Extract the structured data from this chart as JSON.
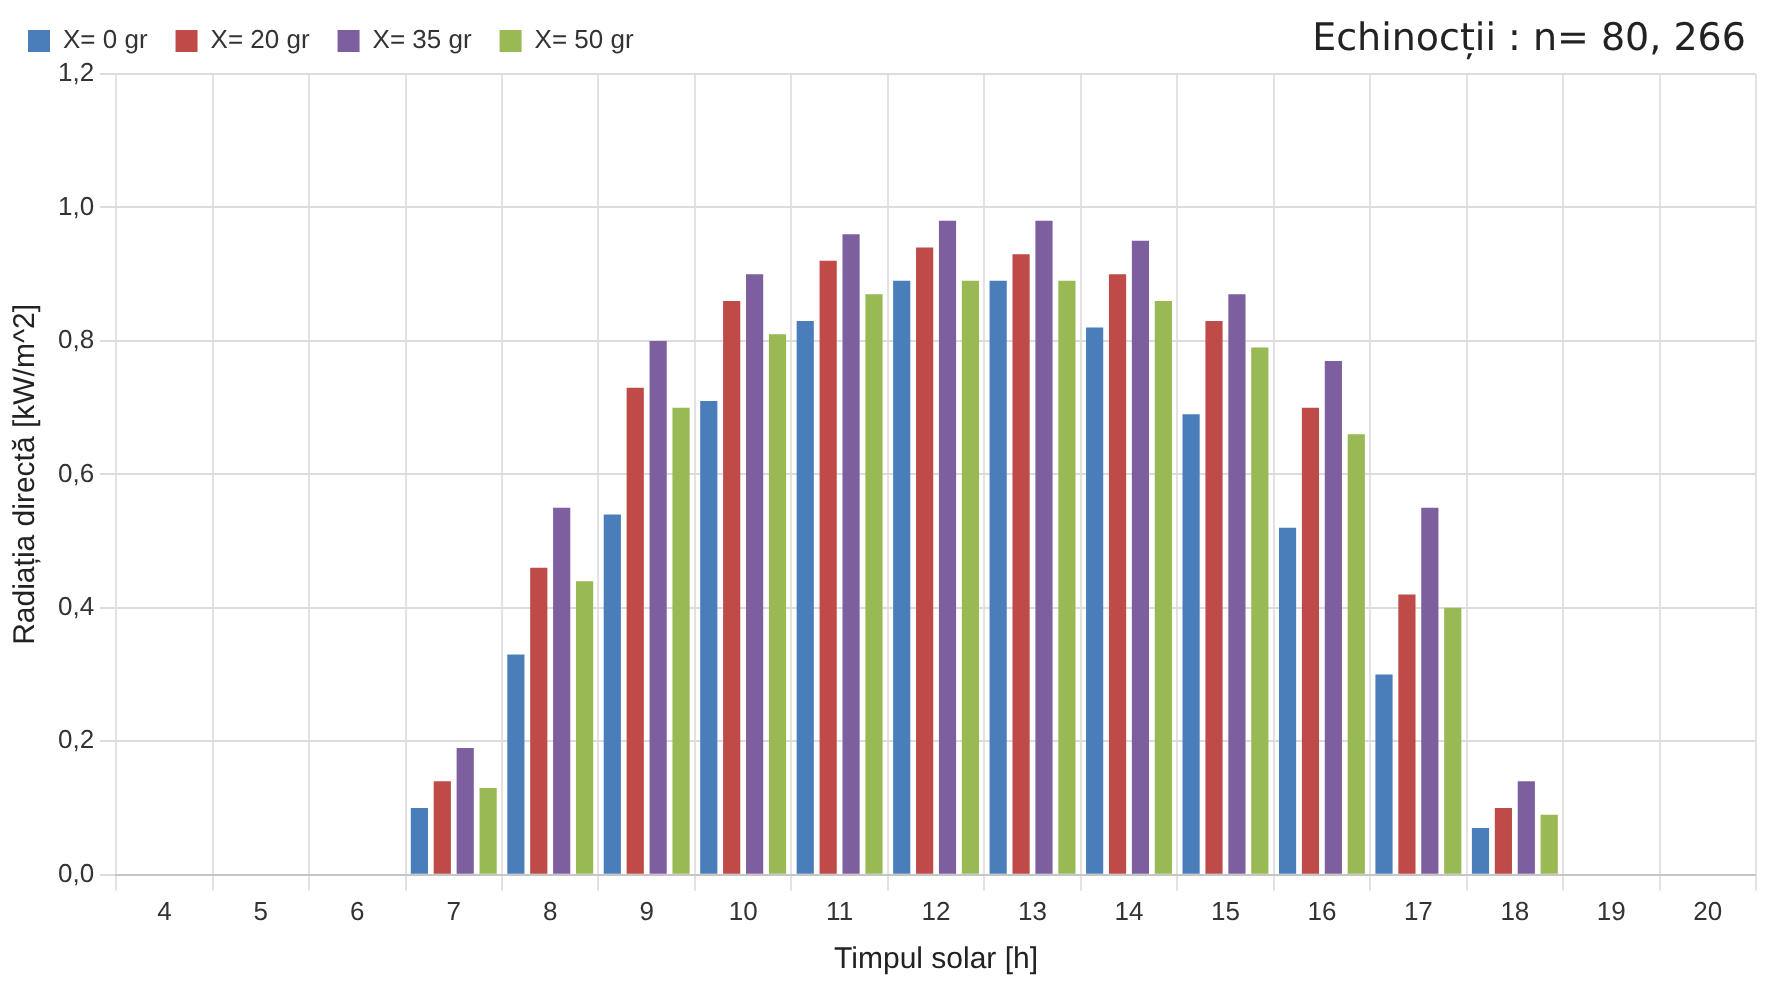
{
  "chart_data": {
    "type": "bar",
    "title": "Echinocții : n= 80, 266",
    "xlabel": "Timpul solar [h]",
    "ylabel": "Radiația directă [kW/m^2]",
    "categories": [
      "4",
      "5",
      "6",
      "7",
      "8",
      "9",
      "10",
      "11",
      "12",
      "13",
      "14",
      "15",
      "16",
      "17",
      "18",
      "19",
      "20"
    ],
    "series": [
      {
        "name": "X= 0 gr",
        "color": "#4a7ebb",
        "values": [
          0,
          0,
          0,
          0.1,
          0.33,
          0.54,
          0.71,
          0.83,
          0.89,
          0.89,
          0.82,
          0.69,
          0.52,
          0.3,
          0.07,
          0,
          0
        ]
      },
      {
        "name": "X= 20 gr",
        "color": "#be4b48",
        "values": [
          0,
          0,
          0,
          0.14,
          0.46,
          0.73,
          0.86,
          0.92,
          0.94,
          0.93,
          0.9,
          0.83,
          0.7,
          0.42,
          0.1,
          0,
          0
        ]
      },
      {
        "name": "X= 35 gr",
        "color": "#7d5fa0",
        "values": [
          0,
          0,
          0,
          0.19,
          0.55,
          0.8,
          0.9,
          0.96,
          0.98,
          0.98,
          0.95,
          0.87,
          0.77,
          0.55,
          0.14,
          0,
          0
        ]
      },
      {
        "name": "X= 50 gr",
        "color": "#98b954",
        "values": [
          0,
          0,
          0,
          0.13,
          0.44,
          0.7,
          0.81,
          0.87,
          0.89,
          0.89,
          0.86,
          0.79,
          0.66,
          0.4,
          0.09,
          0,
          0
        ]
      }
    ],
    "ylim": [
      0,
      1.2
    ],
    "yticks": [
      {
        "value": 0,
        "label": "0,0"
      },
      {
        "value": 0.2,
        "label": "0,2"
      },
      {
        "value": 0.4,
        "label": "0,4"
      },
      {
        "value": 0.6,
        "label": "0,6"
      },
      {
        "value": 0.8,
        "label": "0,8"
      },
      {
        "value": 1.0,
        "label": "1,0"
      },
      {
        "value": 1.2,
        "label": "1,2"
      }
    ],
    "grid": true,
    "legend": "top left"
  }
}
